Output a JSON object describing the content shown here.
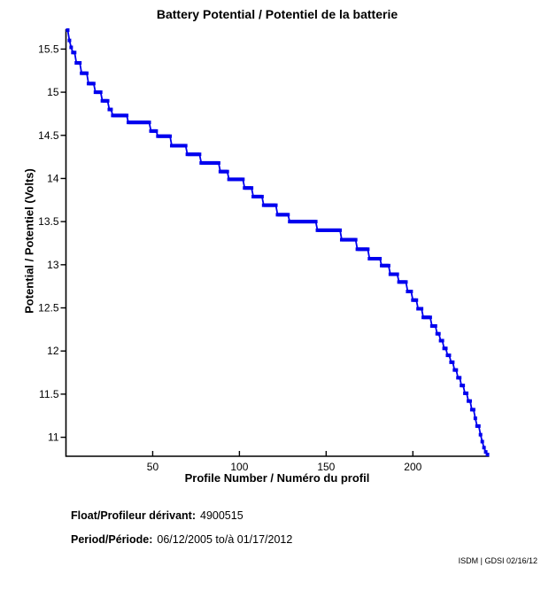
{
  "page": {
    "background": "#ffffff"
  },
  "chart_data": {
    "type": "line",
    "title": "Battery Potential / Potentiel de la batterie",
    "xlabel": "Profile Number / Numéro du profil",
    "ylabel": "Potential / Potentiel (Volts)",
    "x_ticks": [
      50,
      100,
      150,
      200
    ],
    "y_ticks": [
      11,
      11.5,
      12,
      12.5,
      13,
      13.5,
      14,
      14.5,
      15,
      15.5
    ],
    "xlim": [
      0,
      244
    ],
    "ylim": [
      10.78,
      15.73
    ],
    "grid": false,
    "legend": false,
    "line_color": "#0000EE",
    "axis_color": "#000000",
    "marker": "square",
    "series": [
      {
        "name": "Battery Potential",
        "x_start_profile": 1,
        "x_end_profile": 243,
        "step_breakpoints": [
          [
            1,
            15.72
          ],
          [
            2,
            15.6
          ],
          [
            3,
            15.52
          ],
          [
            4,
            15.46
          ],
          [
            6,
            15.34
          ],
          [
            9,
            15.22
          ],
          [
            13,
            15.1
          ],
          [
            17,
            15.0
          ],
          [
            21,
            14.9
          ],
          [
            25,
            14.8
          ],
          [
            27,
            14.73
          ],
          [
            36,
            14.65
          ],
          [
            49,
            14.55
          ],
          [
            53,
            14.49
          ],
          [
            61,
            14.38
          ],
          [
            70,
            14.28
          ],
          [
            78,
            14.18
          ],
          [
            89,
            14.08
          ],
          [
            94,
            13.99
          ],
          [
            103,
            13.89
          ],
          [
            108,
            13.79
          ],
          [
            114,
            13.69
          ],
          [
            122,
            13.58
          ],
          [
            129,
            13.5
          ],
          [
            145,
            13.4
          ],
          [
            159,
            13.29
          ],
          [
            168,
            13.18
          ],
          [
            175,
            13.07
          ],
          [
            182,
            12.99
          ],
          [
            187,
            12.89
          ],
          [
            192,
            12.8
          ],
          [
            197,
            12.69
          ],
          [
            200,
            12.59
          ],
          [
            203,
            12.49
          ],
          [
            206,
            12.39
          ],
          [
            211,
            12.29
          ],
          [
            214,
            12.2
          ],
          [
            216,
            12.12
          ],
          [
            218,
            12.03
          ],
          [
            220,
            11.95
          ],
          [
            222,
            11.87
          ],
          [
            224,
            11.78
          ],
          [
            226,
            11.69
          ],
          [
            228,
            11.6
          ],
          [
            230,
            11.51
          ],
          [
            232,
            11.42
          ],
          [
            234,
            11.32
          ],
          [
            236,
            11.22
          ],
          [
            237,
            11.13
          ],
          [
            239,
            11.03
          ],
          [
            240,
            10.95
          ],
          [
            241,
            10.88
          ],
          [
            242,
            10.83
          ],
          [
            243,
            10.8
          ]
        ]
      }
    ]
  },
  "footer": {
    "float_label": "Float/Profileur dérivant:",
    "float_value": "4900515",
    "period_label": "Period/Période:",
    "period_value": "06/12/2005  to/à  01/17/2012",
    "credit": "ISDM | GDSI 02/16/12"
  }
}
